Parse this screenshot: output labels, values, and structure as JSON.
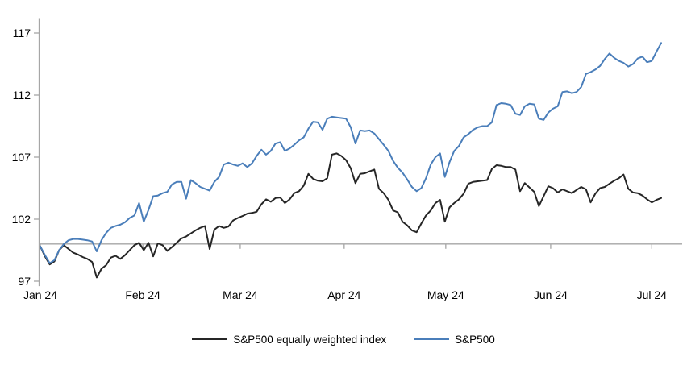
{
  "page": {
    "background": "#ffffff"
  },
  "chart_data": {
    "type": "line",
    "title": "",
    "xlabel": "",
    "ylabel": "",
    "grid": "off",
    "legend_position": "bottom-center",
    "axis_color": "#a6a6a6",
    "baseline_value": 100,
    "y_axis": {
      "ticks": [
        97,
        102,
        107,
        112,
        117
      ],
      "min": 96.6,
      "max": 118.2
    },
    "x_axis": {
      "tick_labels": [
        "Jan 24",
        "Feb 24",
        "Mar 24",
        "Apr 24",
        "May 24",
        "Jun 24",
        "Jul 24"
      ],
      "tick_positions_days": [
        0,
        21.8,
        42.5,
        64.6,
        86.2,
        108.5,
        130
      ],
      "total_days": 132
    },
    "series": [
      {
        "name": "S&P500 equally weighted index",
        "color": "#262626",
        "values": [
          99.8,
          99.0,
          98.35,
          98.6,
          99.5,
          99.9,
          99.6,
          99.3,
          99.15,
          98.95,
          98.8,
          98.55,
          97.3,
          98.0,
          98.3,
          98.9,
          99.05,
          98.8,
          99.1,
          99.5,
          99.9,
          100.1,
          99.5,
          100.1,
          99.0,
          100.05,
          99.9,
          99.45,
          99.75,
          100.1,
          100.45,
          100.6,
          100.85,
          101.1,
          101.3,
          101.45,
          99.6,
          101.15,
          101.45,
          101.3,
          101.4,
          101.9,
          102.1,
          102.25,
          102.45,
          102.5,
          102.6,
          103.2,
          103.6,
          103.4,
          103.7,
          103.75,
          103.3,
          103.6,
          104.1,
          104.25,
          104.7,
          105.65,
          105.25,
          105.1,
          105.05,
          105.3,
          107.2,
          107.3,
          107.1,
          106.75,
          106.1,
          104.9,
          105.65,
          105.7,
          105.85,
          106.0,
          104.45,
          104.1,
          103.55,
          102.7,
          102.55,
          101.8,
          101.5,
          101.1,
          100.95,
          101.65,
          102.3,
          102.7,
          103.3,
          103.55,
          101.8,
          102.95,
          103.3,
          103.6,
          104.05,
          104.85,
          105.0,
          105.05,
          105.1,
          105.15,
          106.05,
          106.35,
          106.3,
          106.2,
          106.2,
          106.0,
          104.25,
          104.9,
          104.55,
          104.2,
          103.05,
          103.85,
          104.65,
          104.5,
          104.15,
          104.4,
          104.25,
          104.1,
          104.35,
          104.6,
          104.4,
          103.35,
          104.05,
          104.5,
          104.6,
          104.85,
          105.1,
          105.3,
          105.6,
          104.45,
          104.15,
          104.1,
          103.9,
          103.6,
          103.35,
          103.55,
          103.7
        ]
      },
      {
        "name": "S&P500",
        "color": "#4a7eba",
        "values": [
          99.8,
          99.1,
          98.45,
          98.7,
          99.5,
          100.0,
          100.3,
          100.4,
          100.4,
          100.35,
          100.3,
          100.2,
          99.4,
          100.3,
          100.9,
          101.3,
          101.45,
          101.55,
          101.75,
          102.1,
          102.3,
          103.3,
          101.8,
          102.75,
          103.85,
          103.9,
          104.1,
          104.2,
          104.8,
          105.0,
          105.0,
          103.65,
          105.15,
          104.9,
          104.6,
          104.45,
          104.3,
          105.0,
          105.4,
          106.4,
          106.55,
          106.4,
          106.3,
          106.5,
          106.2,
          106.5,
          107.1,
          107.6,
          107.2,
          107.5,
          108.1,
          108.2,
          107.5,
          107.7,
          108.0,
          108.35,
          108.6,
          109.3,
          109.85,
          109.8,
          109.2,
          110.1,
          110.25,
          110.2,
          110.15,
          110.1,
          109.4,
          108.1,
          109.15,
          109.1,
          109.15,
          108.9,
          108.45,
          108.0,
          107.5,
          106.7,
          106.15,
          105.75,
          105.2,
          104.6,
          104.25,
          104.5,
          105.3,
          106.4,
          107.0,
          107.3,
          105.4,
          106.6,
          107.5,
          107.9,
          108.6,
          108.85,
          109.2,
          109.4,
          109.5,
          109.5,
          109.8,
          111.2,
          111.35,
          111.3,
          111.2,
          110.5,
          110.4,
          111.1,
          111.3,
          111.25,
          110.1,
          110.0,
          110.6,
          110.9,
          111.1,
          112.25,
          112.3,
          112.15,
          112.25,
          112.65,
          113.7,
          113.85,
          114.05,
          114.35,
          114.9,
          115.35,
          115.0,
          114.75,
          114.6,
          114.3,
          114.5,
          114.95,
          115.1,
          114.65,
          114.75,
          115.5,
          116.2
        ]
      }
    ]
  },
  "legend": {
    "items": [
      {
        "label": "S&P500 equally weighted index",
        "color": "#262626"
      },
      {
        "label": "S&P500",
        "color": "#4a7eba"
      }
    ]
  }
}
